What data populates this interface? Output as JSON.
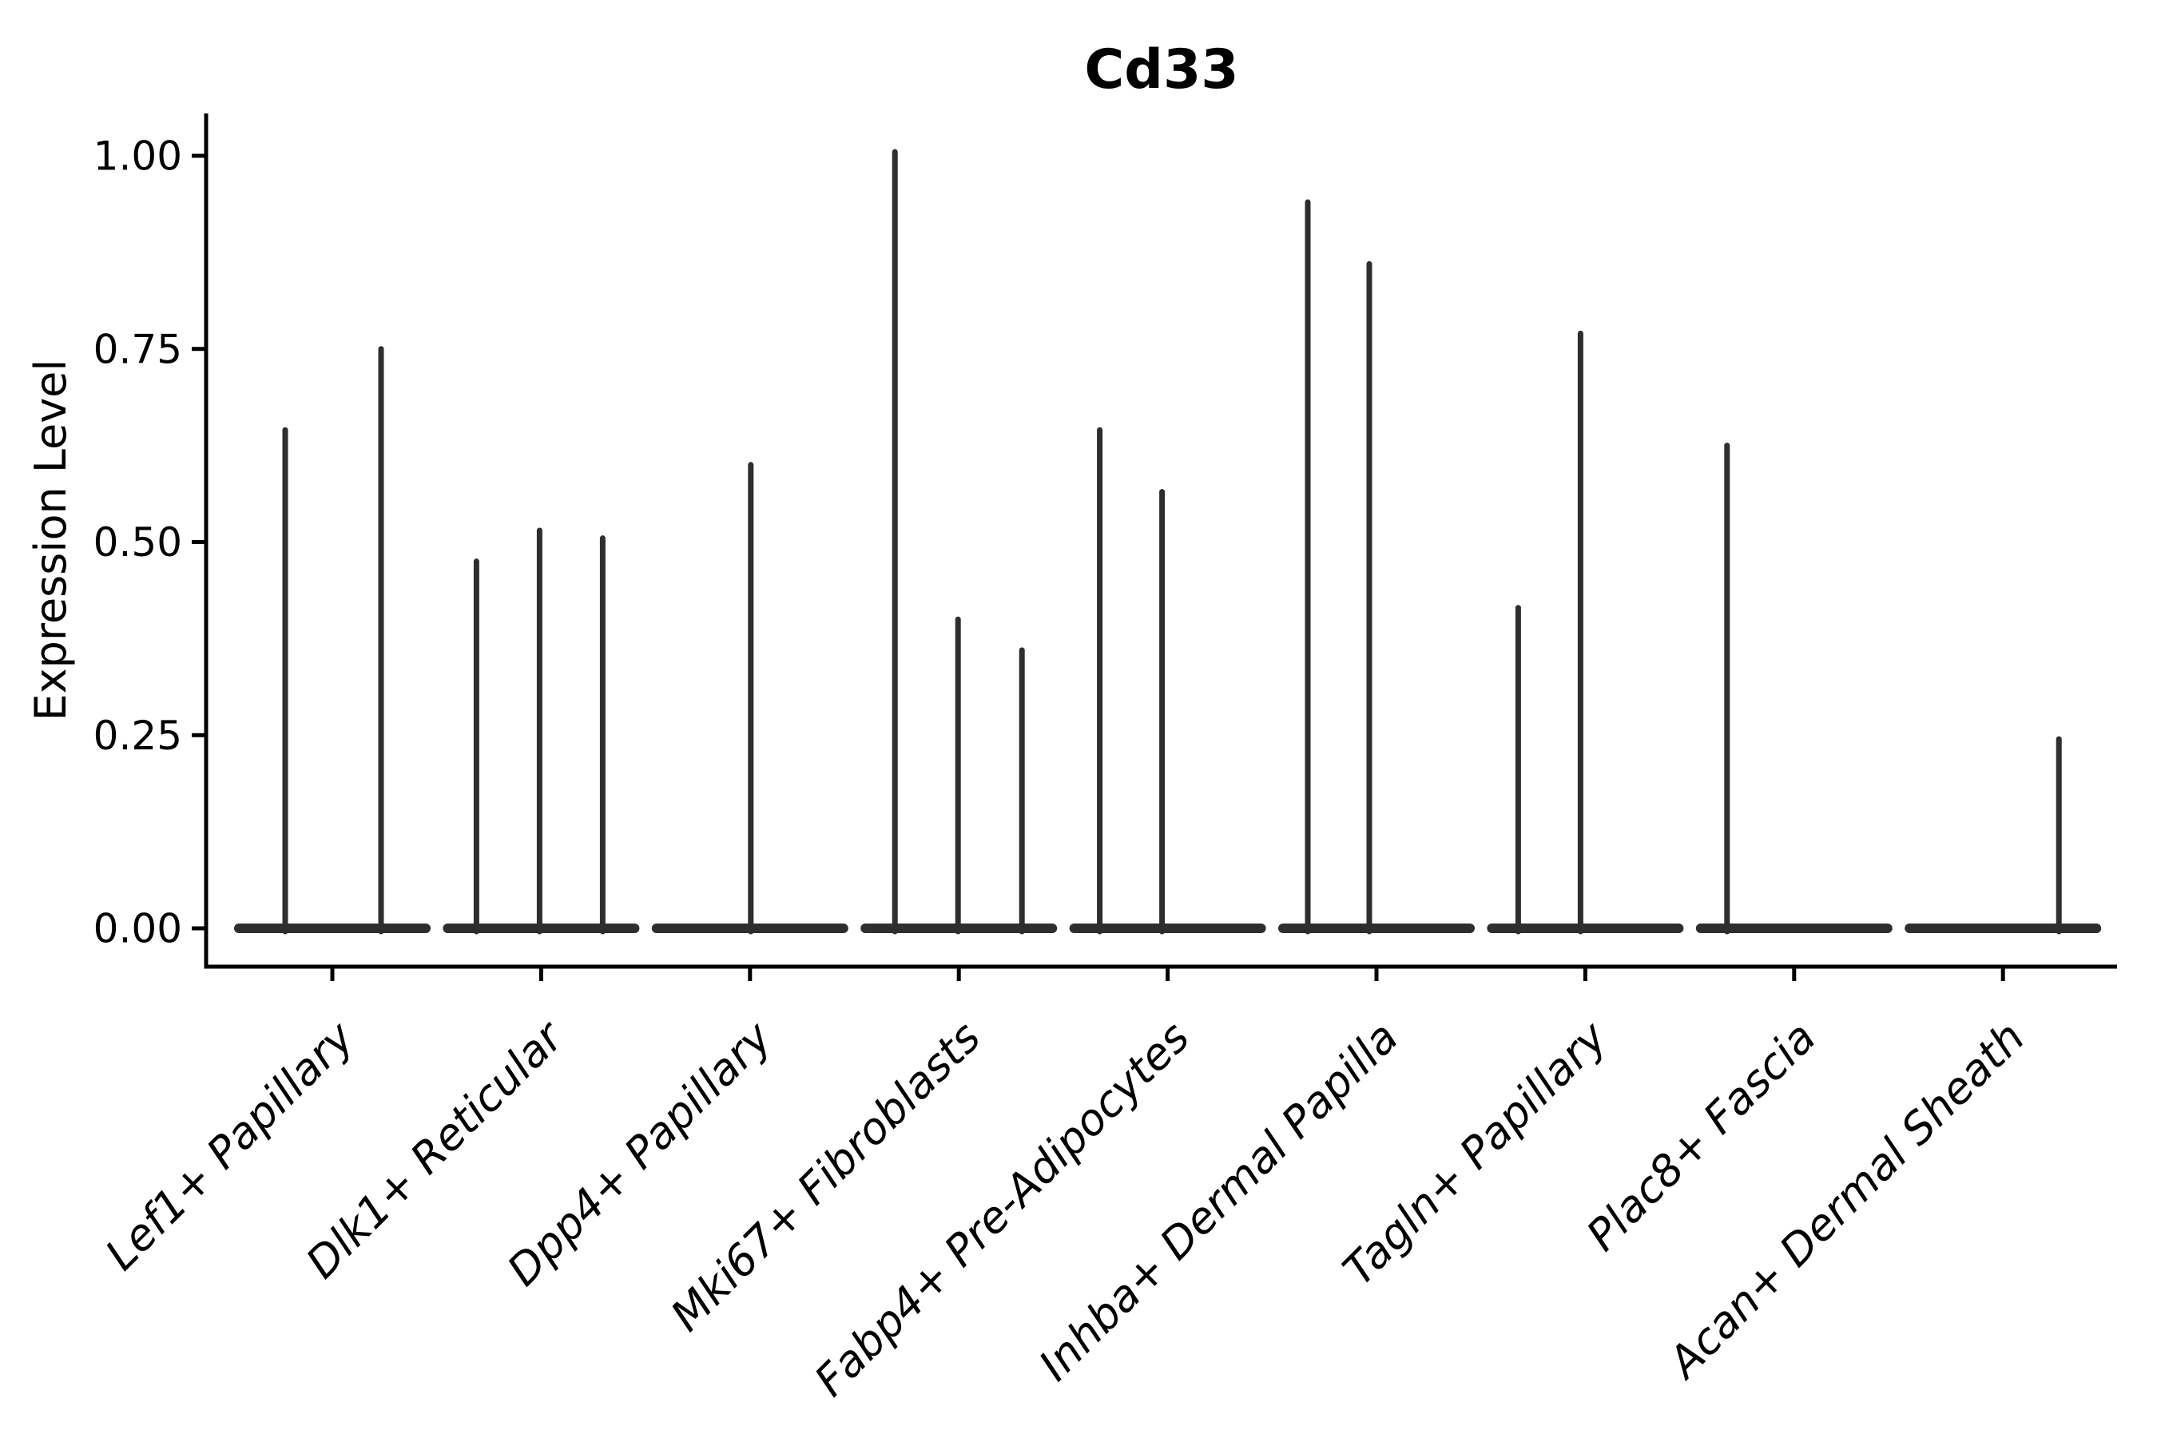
{
  "title": "Cd33",
  "y_axis": {
    "label": "Expression Level",
    "tick_labels": [
      "0.00",
      "0.25",
      "0.50",
      "0.75",
      "1.00"
    ]
  },
  "colors": {
    "violin_ink": "#2e2e2e",
    "axis": "#000000",
    "text": "#000000",
    "background": "#ffffff"
  },
  "chart_data": {
    "type": "violin",
    "title": "Cd33",
    "xlabel": "",
    "ylabel": "Expression Level",
    "ylim": [
      0,
      1.05
    ],
    "y_ticks": [
      0,
      0.25,
      0.5,
      0.75,
      1.0
    ],
    "y_tick_labels": [
      "0.00",
      "0.25",
      "0.50",
      "0.75",
      "1.00"
    ],
    "grid": false,
    "legend_position": "none",
    "description": "Violin plot of Cd33 expression; all distributions are collapsed at 0 (flat bodies) with thin spikes marking rare expressing cells.",
    "categories": [
      {
        "label": "Lef1+ Papillary",
        "baseline_value": 0,
        "spikes": [
          {
            "dx": -59,
            "value": 0.645
          },
          {
            "dx": 61,
            "value": 0.75
          }
        ]
      },
      {
        "label": "Dlk1+ Reticular",
        "baseline_value": 0,
        "spikes": [
          {
            "dx": -81,
            "value": 0.475
          },
          {
            "dx": -2,
            "value": 0.515
          },
          {
            "dx": 77,
            "value": 0.505
          }
        ]
      },
      {
        "label": "Dpp4+ Papillary",
        "baseline_value": 0,
        "spikes": [
          {
            "dx": 1,
            "value": 0.6
          }
        ]
      },
      {
        "label": "Mki67+ Fibroblasts",
        "baseline_value": 0,
        "spikes": [
          {
            "dx": -80,
            "value": 1.005
          },
          {
            "dx": -1,
            "value": 0.4
          },
          {
            "dx": 79,
            "value": 0.36
          }
        ]
      },
      {
        "label": "Fabp4+ Pre-Adipocytes",
        "baseline_value": 0,
        "spikes": [
          {
            "dx": -85,
            "value": 0.645
          },
          {
            "dx": -7,
            "value": 0.565
          }
        ]
      },
      {
        "label": "Inhba+ Dermal Papilla",
        "baseline_value": 0,
        "spikes": [
          {
            "dx": -86,
            "value": 0.94
          },
          {
            "dx": -9,
            "value": 0.86
          }
        ]
      },
      {
        "label": "Tagln+ Papillary",
        "baseline_value": 0,
        "spikes": [
          {
            "dx": -84,
            "value": 0.415
          },
          {
            "dx": -6,
            "value": 0.77
          }
        ]
      },
      {
        "label": "Plac8+ Fascia",
        "baseline_value": 0,
        "spikes": [
          {
            "dx": -84,
            "value": 0.625
          }
        ]
      },
      {
        "label": "Acan+ Dermal Sheath",
        "baseline_value": 0,
        "spikes": [
          {
            "dx": 70,
            "value": 0.245
          }
        ]
      }
    ]
  }
}
